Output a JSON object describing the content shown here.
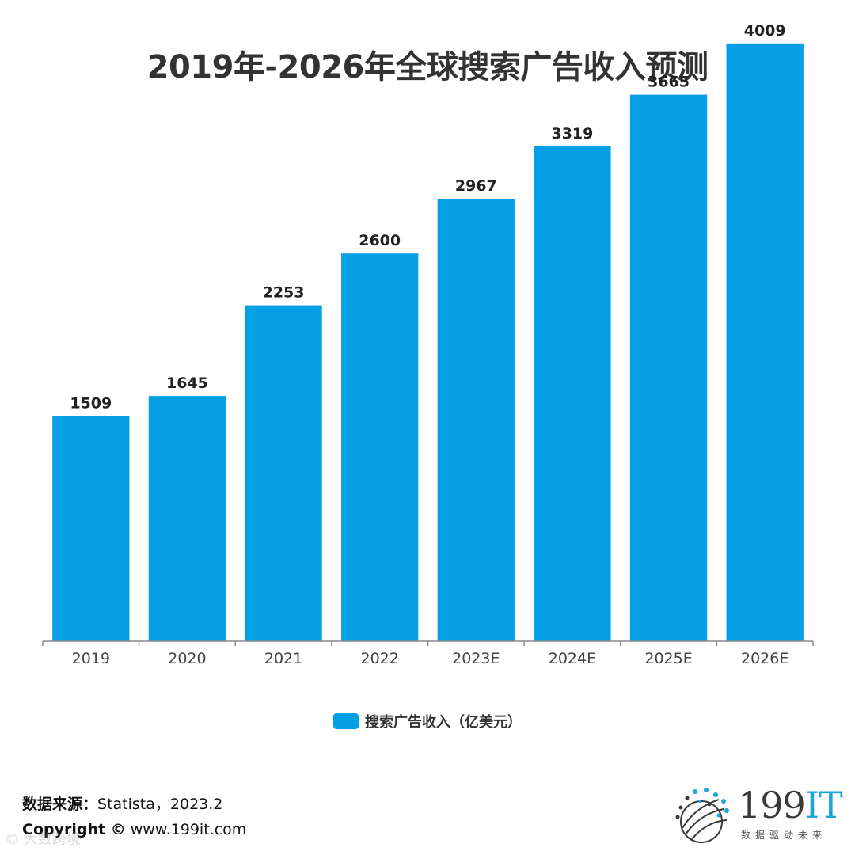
{
  "chart_data": {
    "type": "bar",
    "title": "2019年-2026年全球搜索广告收入预测",
    "categories": [
      "2019",
      "2020",
      "2021",
      "2022",
      "2023E",
      "2024E",
      "2025E",
      "2026E"
    ],
    "series": [
      {
        "name": "搜索广告收入（亿美元）",
        "values": [
          1509,
          1645,
          2253,
          2600,
          2967,
          3319,
          3665,
          4009
        ]
      }
    ],
    "xlabel": "",
    "ylabel": "",
    "ylim": [
      0,
      4300
    ],
    "grid": false,
    "legend_position": "bottom-center",
    "bar_color": "#059fe6"
  },
  "footer": {
    "source_label": "数据来源：",
    "source_value": "Statista，2023.2",
    "copyright_label": "Copyright ©",
    "copyright_value": "www.199it.com",
    "watermark": "© 大数跨境"
  },
  "logo": {
    "text_num": "199",
    "text_it": "IT",
    "tagline": "数据驱动未来"
  }
}
